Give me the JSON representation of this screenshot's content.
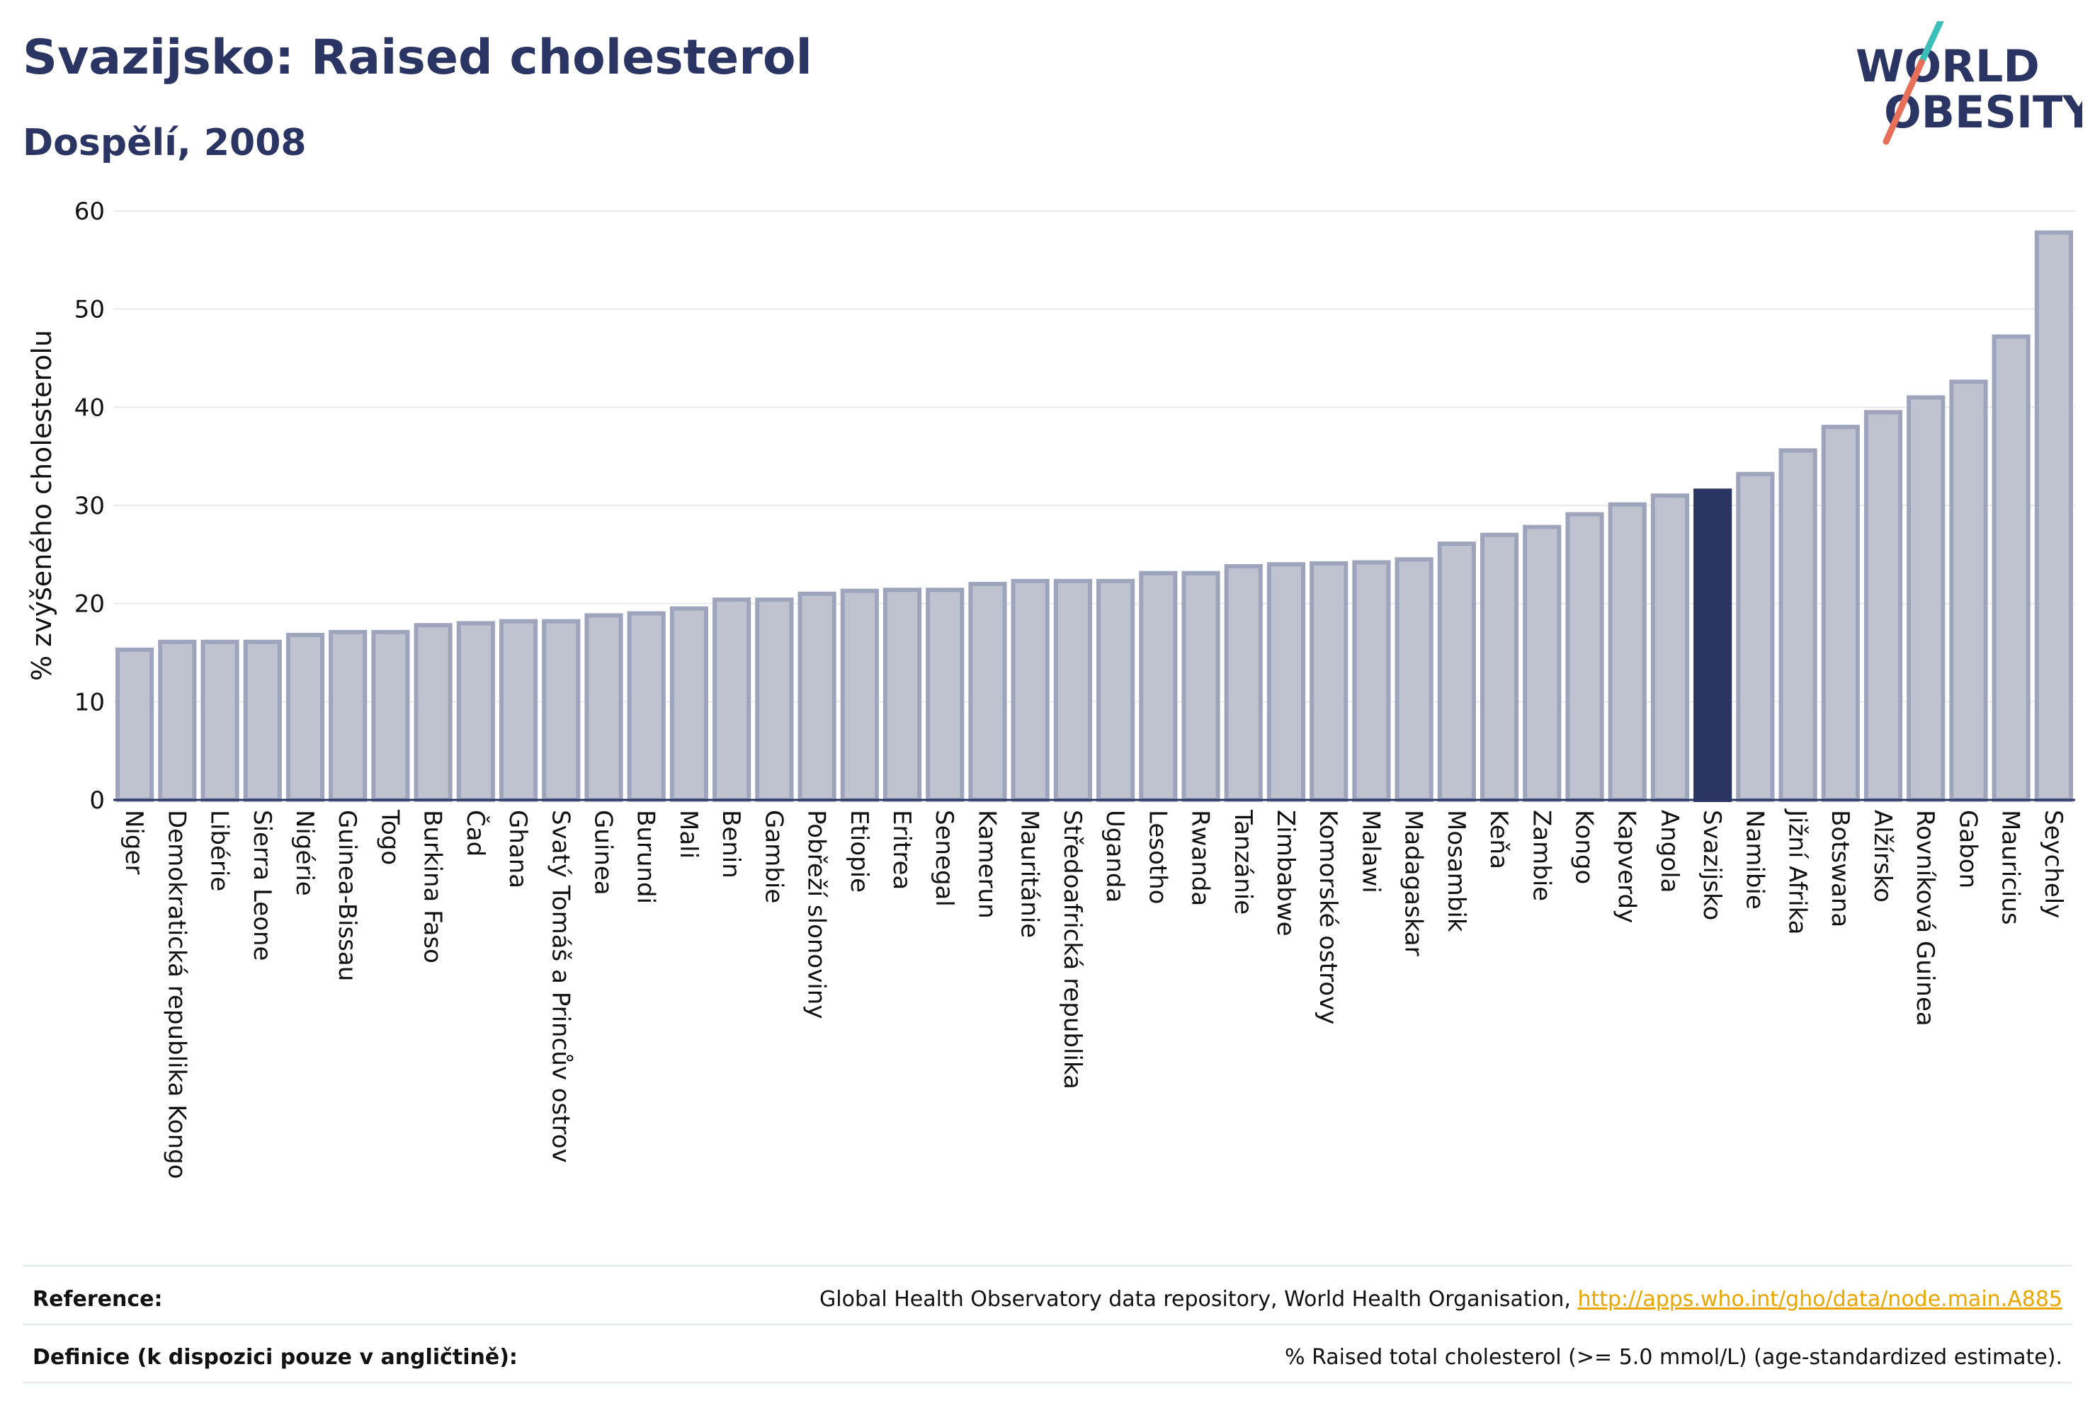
{
  "header": {
    "title": "Svazijsko: Raised cholesterol",
    "subtitle": "Dospělí, 2008"
  },
  "logo": {
    "line1": "WORLD",
    "line2": "OBESITY"
  },
  "footer": {
    "reference_label": "Reference:",
    "reference_text": "Global Health Observatory data repository, World Health Organisation, ",
    "reference_link": "http://apps.who.int/gho/data/node.main.A885",
    "definition_label": "Definice (k dispozici pouze v angličtině):",
    "definition_text": "% Raised total cholesterol (>= 5.0 mmol/L) (age-standardized estimate)."
  },
  "colors": {
    "highlight": "#2b3563",
    "bar_fill": "#bfc3d0",
    "bar_stroke": "#9ea4bb",
    "grid": "#e8e8ee",
    "link": "#e8a600"
  },
  "chart_data": {
    "type": "bar",
    "ylabel": "% zvýšeného cholesterolu",
    "xlabel": "",
    "ylim": [
      0,
      60
    ],
    "yticks": [
      0,
      10,
      20,
      30,
      40,
      50,
      60
    ],
    "grid": true,
    "highlight_category": "Svazijsko",
    "categories": [
      "Niger",
      "Demokratická republika Kongo",
      "Libérie",
      "Sierra Leone",
      "Nigérie",
      "Guinea-Bissau",
      "Togo",
      "Burkina Faso",
      "Čad",
      "Ghana",
      "Svatý Tomáš a Princův ostrov",
      "Guinea",
      "Burundi",
      "Mali",
      "Benin",
      "Gambie",
      "Pobřeží slonoviny",
      "Etiopie",
      "Eritrea",
      "Senegal",
      "Kamerun",
      "Mauritánie",
      "Středoafrická republika",
      "Uganda",
      "Lesotho",
      "Rwanda",
      "Tanzánie",
      "Zimbabwe",
      "Komorské ostrovy",
      "Malawi",
      "Madagaskar",
      "Mosambik",
      "Keňa",
      "Zambie",
      "Kongo",
      "Kapverdy",
      "Angola",
      "Svazijsko",
      "Namibie",
      "Jižní Afrika",
      "Botswana",
      "Alžírsko",
      "Rovníková Guinea",
      "Gabon",
      "Mauricius",
      "Seychely"
    ],
    "values": [
      15.3,
      16.1,
      16.1,
      16.1,
      16.8,
      17.1,
      17.1,
      17.8,
      18.0,
      18.2,
      18.2,
      18.8,
      19.0,
      19.5,
      20.4,
      20.4,
      21.0,
      21.3,
      21.4,
      21.4,
      22.0,
      22.3,
      22.3,
      22.3,
      23.1,
      23.1,
      23.8,
      24.0,
      24.1,
      24.2,
      24.5,
      26.1,
      27.0,
      27.8,
      29.1,
      30.1,
      31.0,
      31.5,
      33.2,
      35.6,
      38.0,
      39.5,
      41.0,
      42.6,
      47.2,
      57.8
    ]
  }
}
